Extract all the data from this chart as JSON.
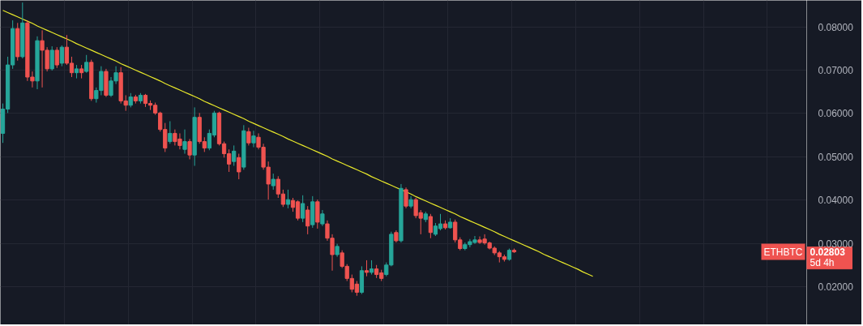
{
  "chart_data": {
    "type": "candlestick",
    "categories": [
      null,
      null,
      null,
      null,
      null,
      null,
      null,
      null,
      null,
      null,
      null,
      null,
      null,
      null,
      null,
      null,
      null,
      null,
      null,
      null,
      null,
      null,
      null,
      null,
      null,
      null,
      null,
      null,
      null,
      null,
      null,
      null,
      null,
      null,
      null,
      null,
      null,
      null,
      null,
      null,
      null,
      null,
      null,
      null,
      null,
      null,
      null,
      null,
      null,
      null,
      null,
      null,
      null,
      null,
      null,
      null,
      null,
      null,
      null,
      null,
      null,
      null,
      null,
      null,
      null,
      null,
      null,
      null,
      null,
      null,
      null,
      null,
      null,
      null,
      null,
      null,
      null,
      null,
      null,
      null,
      null,
      null,
      null,
      null,
      null,
      null,
      null,
      null,
      null,
      null,
      null,
      null,
      null,
      null,
      null,
      null,
      null,
      null,
      null,
      null,
      null,
      null,
      null,
      null,
      null,
      null,
      null,
      null,
      null,
      null,
      null,
      null,
      null,
      null,
      null,
      null,
      null,
      null,
      null,
      null,
      null,
      null,
      null,
      null,
      null,
      null,
      null,
      null,
      null,
      null,
      null,
      null,
      null,
      null,
      null,
      null,
      null,
      null,
      null,
      null,
      null,
      null,
      null,
      null,
      null,
      null,
      null,
      null,
      null,
      null,
      null,
      null,
      null,
      null,
      null,
      null,
      null,
      null,
      null,
      null,
      null,
      null,
      null,
      null
    ],
    "ohlc": [
      [
        0.0554,
        0.0623,
        0.0532,
        0.061
      ],
      [
        0.061,
        0.0731,
        0.0601,
        0.0712
      ],
      [
        0.0712,
        0.0815,
        0.0703,
        0.0796
      ],
      [
        0.0796,
        0.0809,
        0.0722,
        0.0731
      ],
      [
        0.0731,
        0.0856,
        0.0727,
        0.0809
      ],
      [
        0.0809,
        0.0815,
        0.0675,
        0.0684
      ],
      [
        0.0684,
        0.0697,
        0.066,
        0.0675
      ],
      [
        0.0675,
        0.0778,
        0.0656,
        0.0768
      ],
      [
        0.0768,
        0.0792,
        0.066,
        0.0746
      ],
      [
        0.0746,
        0.0753,
        0.0697,
        0.0703
      ],
      [
        0.0703,
        0.0755,
        0.0699,
        0.0746
      ],
      [
        0.0746,
        0.0753,
        0.0705,
        0.0712
      ],
      [
        0.0716,
        0.0757,
        0.0709,
        0.0753
      ],
      [
        0.0753,
        0.0781,
        0.0712,
        0.0716
      ],
      [
        0.0716,
        0.0731,
        0.0684,
        0.0694
      ],
      [
        0.0694,
        0.0712,
        0.0681,
        0.0703
      ],
      [
        0.0703,
        0.0712,
        0.0681,
        0.0694
      ],
      [
        0.0697,
        0.0735,
        0.0694,
        0.0718
      ],
      [
        0.0718,
        0.0724,
        0.0629,
        0.0634
      ],
      [
        0.0634,
        0.066,
        0.0625,
        0.0653
      ],
      [
        0.0653,
        0.0709,
        0.0642,
        0.0697
      ],
      [
        0.0697,
        0.0703,
        0.0638,
        0.0642
      ],
      [
        0.0642,
        0.0684,
        0.0638,
        0.0675
      ],
      [
        0.0675,
        0.0709,
        0.0668,
        0.0694
      ],
      [
        0.0694,
        0.0707,
        0.0623,
        0.0629
      ],
      [
        0.0629,
        0.0642,
        0.0606,
        0.0619
      ],
      [
        0.0619,
        0.0647,
        0.0614,
        0.0638
      ],
      [
        0.0638,
        0.0643,
        0.0623,
        0.0629
      ],
      [
        0.0629,
        0.0647,
        0.0623,
        0.0642
      ],
      [
        0.0642,
        0.0645,
        0.0615,
        0.0623
      ],
      [
        0.0623,
        0.063,
        0.0608,
        0.0619
      ],
      [
        0.0619,
        0.0625,
        0.0597,
        0.0601
      ],
      [
        0.0601,
        0.0604,
        0.0558,
        0.0563
      ],
      [
        0.0563,
        0.0578,
        0.0511,
        0.052
      ],
      [
        0.0535,
        0.0582,
        0.053,
        0.0554
      ],
      [
        0.0554,
        0.0563,
        0.0526,
        0.0535
      ],
      [
        0.0541,
        0.0554,
        0.0517,
        0.0526
      ],
      [
        0.0517,
        0.0563,
        0.0507,
        0.0535
      ],
      [
        0.0535,
        0.0541,
        0.0494,
        0.0504
      ],
      [
        0.0504,
        0.0614,
        0.0479,
        0.0591
      ],
      [
        0.0591,
        0.0601,
        0.053,
        0.0535
      ],
      [
        0.0535,
        0.0545,
        0.0511,
        0.052
      ],
      [
        0.052,
        0.0563,
        0.0515,
        0.0554
      ],
      [
        0.055,
        0.0606,
        0.0545,
        0.0601
      ],
      [
        0.0601,
        0.0604,
        0.0526,
        0.053
      ],
      [
        0.053,
        0.0535,
        0.0498,
        0.0507
      ],
      [
        0.0507,
        0.0517,
        0.0465,
        0.0483
      ],
      [
        0.0489,
        0.0526,
        0.0479,
        0.0513
      ],
      [
        0.0498,
        0.0507,
        0.0448,
        0.0465
      ],
      [
        0.0476,
        0.0573,
        0.047,
        0.056
      ],
      [
        0.0558,
        0.0567,
        0.0526,
        0.0532
      ],
      [
        0.0532,
        0.056,
        0.0522,
        0.0548
      ],
      [
        0.0545,
        0.0554,
        0.0517,
        0.0522
      ],
      [
        0.0522,
        0.053,
        0.047,
        0.0476
      ],
      [
        0.0476,
        0.0489,
        0.0401,
        0.0437
      ],
      [
        0.0433,
        0.0461,
        0.0424,
        0.0448
      ],
      [
        0.0448,
        0.0455,
        0.0405,
        0.0414
      ],
      [
        0.0414,
        0.0424,
        0.0384,
        0.039
      ],
      [
        0.039,
        0.0424,
        0.0381,
        0.0401
      ],
      [
        0.0399,
        0.0405,
        0.0373,
        0.0383
      ],
      [
        0.0396,
        0.0399,
        0.0353,
        0.0358
      ],
      [
        0.0358,
        0.0411,
        0.0349,
        0.0392
      ],
      [
        0.0377,
        0.0386,
        0.0321,
        0.034
      ],
      [
        0.0343,
        0.0409,
        0.0336,
        0.0396
      ],
      [
        0.0396,
        0.0401,
        0.0334,
        0.0349
      ],
      [
        0.0345,
        0.0377,
        0.034,
        0.0368
      ],
      [
        0.0345,
        0.0353,
        0.0306,
        0.0312
      ],
      [
        0.0312,
        0.0321,
        0.0237,
        0.0274
      ],
      [
        0.0274,
        0.0299,
        0.0269,
        0.0293
      ],
      [
        0.0278,
        0.0284,
        0.0243,
        0.0247
      ],
      [
        0.0247,
        0.0252,
        0.0213,
        0.0219
      ],
      [
        0.0219,
        0.0228,
        0.0187,
        0.0194
      ],
      [
        0.0206,
        0.0213,
        0.0179,
        0.0187
      ],
      [
        0.0187,
        0.0247,
        0.0183,
        0.0237
      ],
      [
        0.0237,
        0.0261,
        0.0224,
        0.0233
      ],
      [
        0.0233,
        0.0261,
        0.0228,
        0.0241
      ],
      [
        0.0241,
        0.025,
        0.022,
        0.0228
      ],
      [
        0.0232,
        0.0239,
        0.0213,
        0.0219
      ],
      [
        0.0228,
        0.0256,
        0.0224,
        0.025
      ],
      [
        0.025,
        0.0327,
        0.0247,
        0.0321
      ],
      [
        0.0325,
        0.033,
        0.0302,
        0.0306
      ],
      [
        0.0306,
        0.0437,
        0.0302,
        0.0427
      ],
      [
        0.0424,
        0.0429,
        0.0381,
        0.0386
      ],
      [
        0.0386,
        0.0409,
        0.0381,
        0.0401
      ],
      [
        0.0401,
        0.0405,
        0.0358,
        0.0364
      ],
      [
        0.0371,
        0.0377,
        0.0321,
        0.0358
      ],
      [
        0.0355,
        0.0373,
        0.0349,
        0.0368
      ],
      [
        0.0362,
        0.0368,
        0.0312,
        0.0325
      ],
      [
        0.0321,
        0.0347,
        0.0317,
        0.034
      ],
      [
        0.0334,
        0.0368,
        0.033,
        0.0345
      ],
      [
        0.0345,
        0.0353,
        0.0332,
        0.0336
      ],
      [
        0.0336,
        0.0358,
        0.0334,
        0.0349
      ],
      [
        0.0349,
        0.0355,
        0.0302,
        0.0308
      ],
      [
        0.0308,
        0.0314,
        0.0284,
        0.0288
      ],
      [
        0.0288,
        0.0302,
        0.0284,
        0.0297
      ],
      [
        0.0297,
        0.031,
        0.0291,
        0.0304
      ],
      [
        0.0302,
        0.0317,
        0.0299,
        0.0308
      ],
      [
        0.0308,
        0.0316,
        0.0299,
        0.0302
      ],
      [
        0.031,
        0.0321,
        0.0297,
        0.0301
      ],
      [
        0.0301,
        0.0304,
        0.0286,
        0.0289
      ],
      [
        0.0289,
        0.0293,
        0.0273,
        0.0278
      ],
      [
        0.0278,
        0.0282,
        0.0256,
        0.0269
      ],
      [
        0.0269,
        0.0274,
        0.0258,
        0.0263
      ],
      [
        0.0263,
        0.0288,
        0.026,
        0.0284
      ],
      [
        0.0284,
        0.0288,
        0.0278,
        0.02803
      ],
      null,
      null,
      null,
      null,
      null,
      null,
      null,
      null,
      null,
      null,
      null,
      null,
      null,
      null,
      null,
      null,
      null,
      null,
      null,
      null,
      null,
      null,
      null,
      null,
      null,
      null,
      null,
      null,
      null,
      null,
      null,
      null,
      null,
      null,
      null,
      null,
      null,
      null,
      null,
      null,
      null,
      null,
      null,
      null,
      null,
      null,
      null,
      null,
      null,
      null,
      null,
      null,
      null,
      null,
      null,
      null,
      null,
      null,
      null
    ],
    "colors": [
      "#26a69a",
      "#26a69a",
      "#26a69a",
      "#ef5350",
      "#26a69a",
      "#ef5350",
      "#ef5350",
      "#26a69a",
      "#ef5350",
      "#ef5350",
      "#26a69a",
      "#ef5350",
      "#26a69a",
      "#ef5350",
      "#ef5350",
      "#26a69a",
      "#ef5350",
      "#26a69a",
      "#ef5350",
      "#26a69a",
      "#26a69a",
      "#ef5350",
      "#26a69a",
      "#26a69a",
      "#ef5350",
      "#ef5350",
      "#26a69a",
      "#ef5350",
      "#26a69a",
      "#ef5350",
      "#ef5350",
      "#ef5350",
      "#ef5350",
      "#ef5350",
      "#26a69a",
      "#ef5350",
      "#ef5350",
      "#26a69a",
      "#ef5350",
      "#26a69a",
      "#ef5350",
      "#ef5350",
      "#26a69a",
      "#26a69a",
      "#ef5350",
      "#ef5350",
      "#ef5350",
      "#26a69a",
      "#ef5350",
      "#26a69a",
      "#ef5350",
      "#26a69a",
      "#ef5350",
      "#ef5350",
      "#ef5350",
      "#26a69a",
      "#ef5350",
      "#ef5350",
      "#26a69a",
      "#ef5350",
      "#ef5350",
      "#26a69a",
      "#ef5350",
      "#26a69a",
      "#ef5350",
      "#26a69a",
      "#ef5350",
      "#ef5350",
      "#26a69a",
      "#ef5350",
      "#ef5350",
      "#ef5350",
      "#ef5350",
      "#26a69a",
      "#ef5350",
      "#26a69a",
      "#ef5350",
      "#ef5350",
      "#26a69a",
      "#26a69a",
      "#ef5350",
      "#26a69a",
      "#ef5350",
      "#26a69a",
      "#ef5350",
      "#ef5350",
      "#26a69a",
      "#ef5350",
      "#26a69a",
      "#26a69a",
      "#ef5350",
      "#26a69a",
      "#ef5350",
      "#ef5350",
      "#26a69a",
      "#26a69a",
      "#26a69a",
      "#ef5350",
      "#ef5350",
      "#ef5350",
      "#ef5350",
      "#ef5350",
      "#ef5350",
      "#26a69a",
      "#ef5350",
      null,
      null,
      null,
      null,
      null,
      null,
      null,
      null,
      null,
      null,
      null,
      null,
      null,
      null,
      null,
      null,
      null,
      null,
      null,
      null,
      null,
      null,
      null,
      null,
      null,
      null,
      null,
      null,
      null,
      null,
      null,
      null,
      null,
      null,
      null,
      null,
      null,
      null,
      null,
      null,
      null,
      null,
      null,
      null,
      null,
      null,
      null,
      null,
      null,
      null,
      null,
      null,
      null,
      null,
      null,
      null,
      null,
      null,
      null
    ],
    "series": [
      {
        "type": "line",
        "color": "#e9e92a",
        "values": [
          0.0838,
          0.0833,
          0.0828,
          0.0823,
          0.0818,
          0.0813,
          0.0808,
          0.0802,
          0.0797,
          0.0792,
          0.0787,
          0.0782,
          0.0777,
          0.0772,
          0.0767,
          0.0761,
          0.0756,
          0.0751,
          0.0746,
          0.0741,
          0.0736,
          0.0731,
          0.0726,
          0.0721,
          0.0715,
          0.071,
          0.0705,
          0.07,
          0.0695,
          0.069,
          0.0685,
          0.068,
          0.0675,
          0.0669,
          0.0664,
          0.0659,
          0.0654,
          0.0649,
          0.0644,
          0.0639,
          0.0634,
          0.0628,
          0.0623,
          0.0618,
          0.0613,
          0.0608,
          0.0603,
          0.0598,
          0.0593,
          0.0588,
          0.0582,
          0.0577,
          0.0572,
          0.0567,
          0.0562,
          0.0557,
          0.0552,
          0.0547,
          0.0541,
          0.0536,
          0.0531,
          0.0526,
          0.0521,
          0.0516,
          0.0511,
          0.0506,
          0.0501,
          0.0495,
          0.049,
          0.0485,
          0.048,
          0.0475,
          0.047,
          0.0465,
          0.046,
          0.0454,
          0.0449,
          0.0444,
          0.0439,
          0.0434,
          0.0429,
          0.0424,
          0.0419,
          0.0414,
          0.0408,
          0.0403,
          0.0398,
          0.0393,
          0.0388,
          0.0383,
          0.0378,
          0.0373,
          0.0368,
          0.0362,
          0.0357,
          0.0352,
          0.0347,
          0.0342,
          0.0337,
          0.0332,
          0.0327,
          0.0321,
          0.0316,
          0.0311,
          0.0306,
          0.0301,
          0.0296,
          0.0291,
          0.0286,
          0.0281,
          0.0275,
          0.027,
          0.0265,
          0.026,
          0.0255,
          0.025,
          0.0245,
          0.024,
          0.0234,
          0.0229,
          0.0224,
          null,
          null,
          null,
          null,
          null,
          null,
          null,
          null,
          null,
          null,
          null,
          null,
          null,
          null,
          null,
          null,
          null,
          null,
          null,
          null,
          null,
          null,
          null,
          null,
          null,
          null,
          null,
          null,
          null,
          null,
          null,
          null,
          null,
          null,
          null,
          null,
          null,
          null,
          null,
          null,
          null,
          null,
          null
        ]
      }
    ],
    "ylim": [
      0.0112,
      0.0861
    ],
    "yticks": [
      {
        "value": 0.02,
        "label": "0.02000"
      },
      {
        "value": 0.03,
        "label": "0.03000"
      },
      {
        "value": 0.04,
        "label": "0.04000"
      },
      {
        "value": 0.05,
        "label": "0.05000"
      },
      {
        "value": 0.06,
        "label": "0.06000"
      },
      {
        "value": 0.07,
        "label": "0.07000"
      },
      {
        "value": 0.08,
        "label": "0.08000"
      }
    ],
    "grid": true,
    "tick_labels": "y",
    "annotations": [
      "ETHBTC",
      "0.02803",
      "5d 4h"
    ]
  }
}
